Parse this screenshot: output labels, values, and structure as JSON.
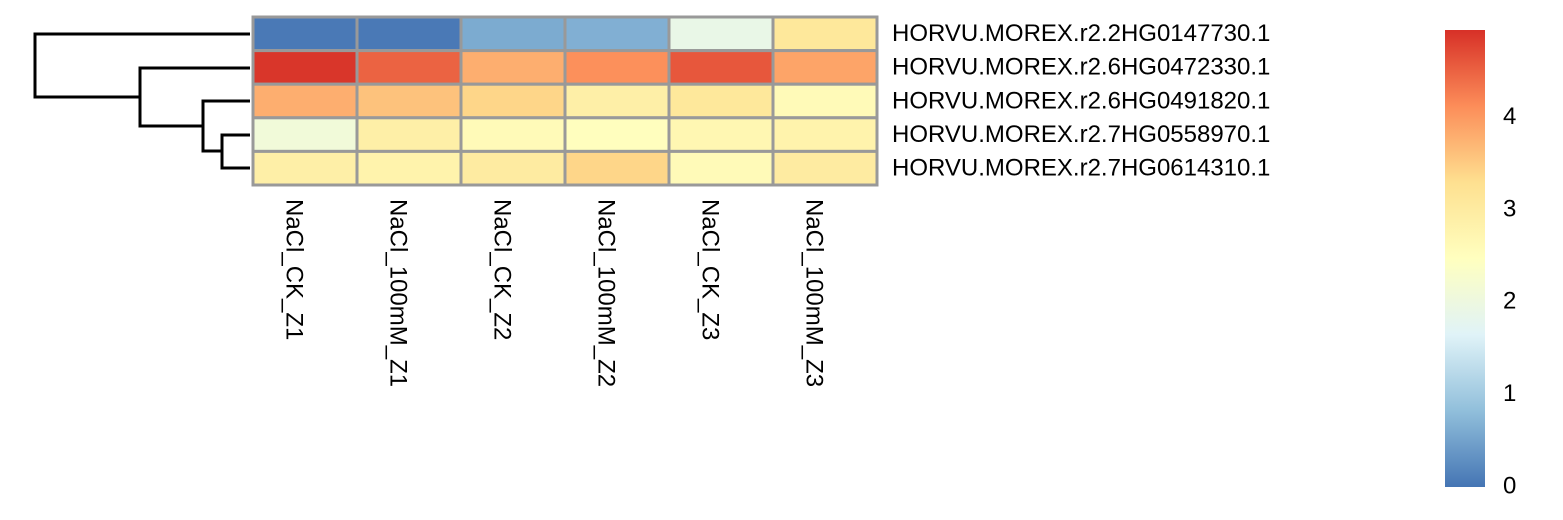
{
  "chart_data": {
    "type": "heatmap",
    "rows": [
      "HORVU.MOREX.r2.2HG0147730.1",
      "HORVU.MOREX.r2.6HG0472330.1",
      "HORVU.MOREX.r2.6HG0491820.1",
      "HORVU.MOREX.r2.7HG0558970.1",
      "HORVU.MOREX.r2.7HG0614310.1"
    ],
    "columns": [
      "NaCl_CK_Z1",
      "NaCl_100mM_Z1",
      "NaCl_CK_Z2",
      "NaCl_100mM_Z2",
      "NaCl_CK_Z3",
      "NaCl_100mM_Z3"
    ],
    "values": [
      [
        0.05,
        0.05,
        0.6,
        0.65,
        1.9,
        3.1
      ],
      [
        4.9,
        4.5,
        3.8,
        4.1,
        4.6,
        3.9
      ],
      [
        3.8,
        3.6,
        3.4,
        2.9,
        3.1,
        2.6
      ],
      [
        2.1,
        2.9,
        2.6,
        2.5,
        2.7,
        2.8
      ],
      [
        2.9,
        2.8,
        3.0,
        3.4,
        2.6,
        3.0
      ]
    ],
    "colors": [
      "#4575b4",
      "#91bfdb",
      "#e0f3f8",
      "#ffffbf",
      "#fee090",
      "#fc8d59",
      "#d73027"
    ],
    "clim": [
      0,
      4.95
    ],
    "cticks": [
      0,
      1,
      2,
      3,
      4
    ]
  }
}
